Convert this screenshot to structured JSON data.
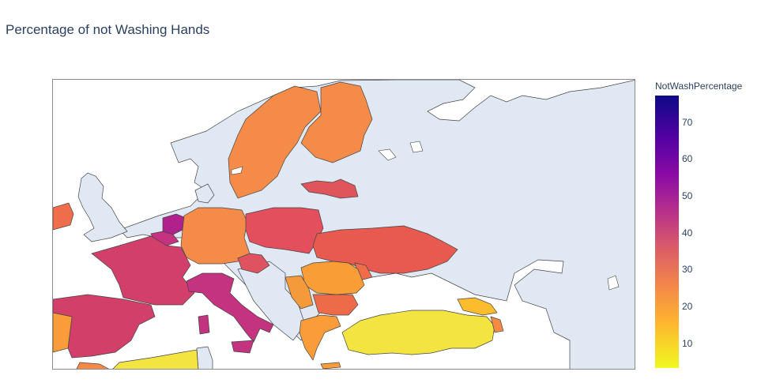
{
  "title": "Percentage of not Washing Hands",
  "colorbar": {
    "title": "NotWashPercentage",
    "ticks": [
      "70",
      "60",
      "50",
      "40",
      "30",
      "20",
      "10"
    ]
  },
  "colors": {
    "land_no_data": "#dfe8f3",
    "water": "#ffffff",
    "border": "#444444"
  },
  "map_data": {
    "type": "choropleth",
    "value_name": "NotWashPercentage",
    "range": [
      3,
      77
    ],
    "countries": [
      {
        "name": "Netherlands",
        "value": 52
      },
      {
        "name": "Belgium",
        "value": 45
      },
      {
        "name": "France",
        "value": 42
      },
      {
        "name": "Spain",
        "value": 41
      },
      {
        "name": "Italy",
        "value": 43
      },
      {
        "name": "Portugal",
        "value": 20
      },
      {
        "name": "Germany",
        "value": 25
      },
      {
        "name": "Sweden",
        "value": 25
      },
      {
        "name": "Finland",
        "value": 25
      },
      {
        "name": "Poland",
        "value": 35
      },
      {
        "name": "Latvia",
        "value": 38
      },
      {
        "name": "Ukraine",
        "value": 32
      },
      {
        "name": "Czechia",
        "value": 38
      },
      {
        "name": "Romania",
        "value": 22
      },
      {
        "name": "Bulgaria",
        "value": 30
      },
      {
        "name": "Greece",
        "value": 20
      },
      {
        "name": "Turkey",
        "value": 6
      },
      {
        "name": "Ireland",
        "value": 29
      },
      {
        "name": "Georgia",
        "value": 14
      },
      {
        "name": "Armenia",
        "value": 22
      },
      {
        "name": "Algeria",
        "value": 6
      },
      {
        "name": "Morocco",
        "value": 26
      },
      {
        "name": "Serbia",
        "value": 22
      },
      {
        "name": "Moldova",
        "value": 33
      }
    ]
  }
}
